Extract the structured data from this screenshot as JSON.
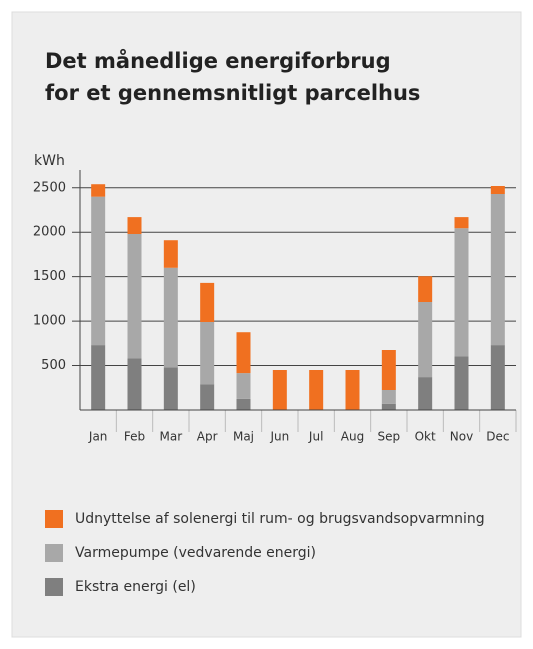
{
  "chart_data": {
    "type": "stacked_bar",
    "title": [
      "Det månedlige energiforbrug",
      "for et gennemsnitligt parcelhus"
    ],
    "y_label": "kWh",
    "categories": [
      "Jan",
      "Feb",
      "Mar",
      "Apr",
      "Maj",
      "Jun",
      "Jul",
      "Aug",
      "Sep",
      "Okt",
      "Nov",
      "Dec"
    ],
    "series": [
      {
        "name": "Udnyttelse af solenergi til rum- og brugsvandsopvarmning",
        "color": "#f07020",
        "values": [
          140,
          190,
          310,
          440,
          460,
          450,
          450,
          450,
          450,
          290,
          125,
          90
        ]
      },
      {
        "name": "Varmepumpe (vedvarende energi)",
        "color": "#a8a8a8",
        "values": [
          1670,
          1400,
          1120,
          700,
          290,
          0,
          0,
          0,
          155,
          845,
          1440,
          1700
        ]
      },
      {
        "name": "Ekstra energi (el)",
        "color": "#7f7f7f",
        "values": [
          730,
          580,
          480,
          290,
          125,
          0,
          0,
          0,
          70,
          370,
          605,
          730
        ]
      }
    ],
    "ylim": [
      0,
      2700
    ],
    "yticks": [
      500,
      1000,
      1500,
      2000,
      2500
    ],
    "grid": true
  }
}
